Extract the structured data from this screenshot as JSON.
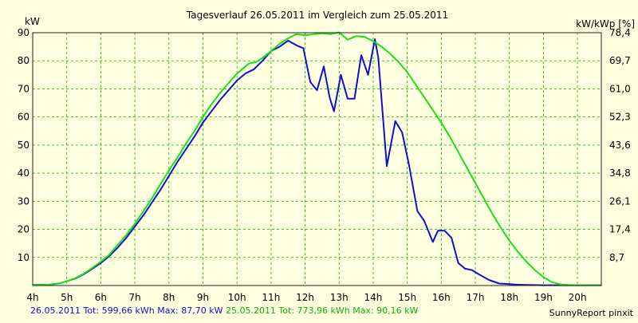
{
  "chart_data": {
    "type": "line",
    "title": "Tagesverlauf 26.05.2011 im Vergleich zum 25.05.2011",
    "ylabel_left": "kW",
    "ylabel_right": "kW/kWp [%]",
    "x_ticks": [
      "4h",
      "5h",
      "6h",
      "7h",
      "8h",
      "9h",
      "10h",
      "11h",
      "12h",
      "13h",
      "14h",
      "15h",
      "16h",
      "17h",
      "18h",
      "19h",
      "20h"
    ],
    "x_range": [
      4,
      20.7
    ],
    "y_ticks_left": [
      "10",
      "20",
      "30",
      "40",
      "50",
      "60",
      "70",
      "80",
      "90"
    ],
    "y_ticks_right": [
      "8,7",
      "17,4",
      "26,1",
      "34,8",
      "43,6",
      "52,3",
      "61,0",
      "69,7",
      "78,4"
    ],
    "ylim": [
      0,
      90
    ],
    "grid": true,
    "series": [
      {
        "name": "26.05.2011",
        "color": "#1010d0",
        "x": [
          4.0,
          4.5,
          4.8,
          5.0,
          5.25,
          5.5,
          5.75,
          6.0,
          6.25,
          6.5,
          6.75,
          7.0,
          7.25,
          7.5,
          7.75,
          8.0,
          8.25,
          8.5,
          8.75,
          9.0,
          9.25,
          9.5,
          9.75,
          10.0,
          10.25,
          10.5,
          10.75,
          11.0,
          11.25,
          11.5,
          11.75,
          11.95,
          12.15,
          12.35,
          12.55,
          12.72,
          12.85,
          13.05,
          13.25,
          13.45,
          13.65,
          13.85,
          14.05,
          14.15,
          14.4,
          14.65,
          14.85,
          15.05,
          15.3,
          15.5,
          15.75,
          15.9,
          16.1,
          16.3,
          16.5,
          16.7,
          16.9,
          17.1,
          17.4,
          17.7,
          18.0,
          18.2,
          18.5,
          19.0,
          19.5,
          20.0,
          20.7
        ],
        "values": [
          0.2,
          0.3,
          0.8,
          1.5,
          2.5,
          4,
          6,
          8,
          10.5,
          13.5,
          17,
          21,
          25,
          29.5,
          34,
          39,
          44,
          48.5,
          53,
          58,
          62,
          66,
          69.5,
          73,
          75.5,
          77,
          80,
          83.5,
          85,
          87.2,
          85.5,
          84.5,
          72.5,
          69.5,
          78,
          67,
          62,
          75,
          66.5,
          66.5,
          82,
          75,
          87.7,
          81,
          42.5,
          58.5,
          54.5,
          43,
          26.5,
          23,
          15.5,
          19.5,
          19.5,
          17,
          8,
          6,
          5.5,
          4,
          2,
          0.7,
          0.5,
          0.3,
          0.2,
          0.1,
          0.1,
          0.1,
          0.1
        ]
      },
      {
        "name": "25.05.2011",
        "color": "#18e018",
        "x": [
          4.0,
          4.5,
          4.8,
          5.0,
          5.25,
          5.5,
          5.75,
          6.0,
          6.25,
          6.5,
          6.75,
          7.0,
          7.25,
          7.5,
          7.75,
          8.0,
          8.25,
          8.5,
          8.75,
          9.0,
          9.25,
          9.5,
          9.75,
          10.0,
          10.15,
          10.35,
          10.55,
          10.75,
          11.0,
          11.25,
          11.5,
          11.75,
          12.0,
          12.25,
          12.5,
          12.75,
          13.0,
          13.25,
          13.5,
          13.75,
          14.0,
          14.25,
          14.5,
          14.75,
          15.0,
          15.25,
          15.5,
          15.75,
          16.0,
          16.25,
          16.5,
          16.75,
          17.0,
          17.25,
          17.5,
          17.75,
          18.0,
          18.25,
          18.5,
          18.75,
          19.0,
          19.25,
          19.5,
          19.75,
          20.0,
          20.7
        ],
        "values": [
          0.2,
          0.3,
          0.8,
          1.5,
          2.6,
          4.2,
          6.3,
          8.5,
          11,
          14.5,
          18,
          22,
          26.5,
          31,
          36,
          41,
          45.5,
          50.5,
          55,
          60,
          64.5,
          68.5,
          72,
          75.5,
          77,
          79,
          79.5,
          81,
          83.5,
          86,
          88,
          89.5,
          89,
          89.5,
          89.8,
          89.5,
          90.1,
          87.5,
          88.8,
          88.5,
          87,
          85,
          82.5,
          79.5,
          76,
          71.5,
          67,
          62.5,
          58,
          53,
          47.5,
          42,
          36.5,
          31,
          25.5,
          20.5,
          16,
          12,
          8.5,
          5.5,
          3,
          1.2,
          0.4,
          0.2,
          0.1,
          0.1
        ]
      }
    ]
  },
  "footer": {
    "series1_stats": "26.05.2011 Tot: 599,66 kWh Max: 87,70 kW",
    "series2_stats": "25.05.2011 Tot: 773,96 kWh Max: 90,16 kW",
    "credit": "SunnyReport pinxit"
  }
}
